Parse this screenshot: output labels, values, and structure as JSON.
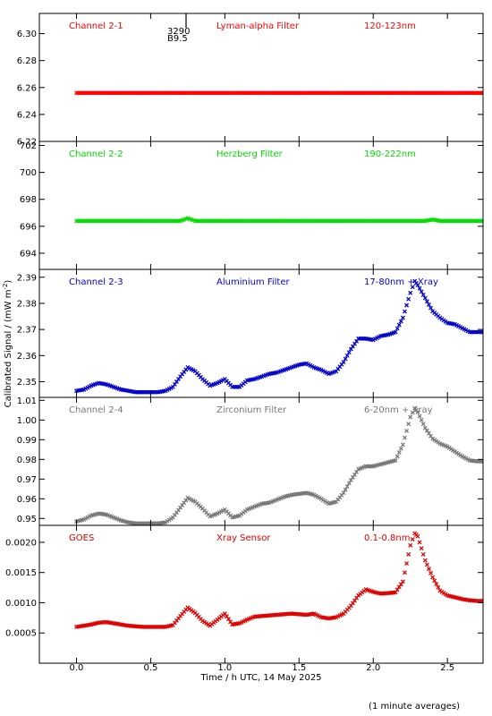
{
  "figure": {
    "ylabel": "Calibrated Signal / (mW m",
    "ylabel_sup": "-2",
    "ylabel_end": ")",
    "xlabel": "Time / h UTC, 14 May 2025",
    "footnote": "(1 minute averages)",
    "marker_top_label": "3290",
    "marker_bottom_label": "B9.5",
    "x_ticks": [
      0.0,
      0.5,
      1.0,
      1.5,
      2.0,
      2.5
    ],
    "x_tick_labels": [
      "0.0",
      "0.5",
      "1.0",
      "1.5",
      "2.0",
      "2.5"
    ],
    "xlim": [
      -0.25,
      2.74
    ]
  },
  "chart_data": [
    {
      "type": "scatter",
      "channel": "Channel 2-1",
      "filter": "Lyman-alpha Filter",
      "band": "120-123nm",
      "color": "#ff0000",
      "ylim": [
        6.22,
        6.315
      ],
      "y_ticks": [
        6.22,
        6.24,
        6.26,
        6.28,
        6.3
      ],
      "y_tick_labels": [
        "6.22",
        "6.24",
        "6.26",
        "6.28",
        "6.30"
      ],
      "points": [
        [
          0.0,
          6.256
        ],
        [
          0.5,
          6.256
        ],
        [
          1.0,
          6.256
        ],
        [
          1.5,
          6.256
        ],
        [
          2.0,
          6.256
        ],
        [
          2.5,
          6.256
        ],
        [
          2.74,
          6.256
        ]
      ]
    },
    {
      "type": "scatter",
      "channel": "Channel 2-2",
      "filter": "Herzberg Filter",
      "band": "190-222nm",
      "color": "#00dd00",
      "ylim": [
        692.8,
        702.3
      ],
      "y_ticks": [
        694,
        696,
        698,
        700,
        702
      ],
      "y_tick_labels": [
        "694",
        "696",
        "698",
        "700",
        "702"
      ],
      "points": [
        [
          0.0,
          696.4
        ],
        [
          0.7,
          696.4
        ],
        [
          0.75,
          696.6
        ],
        [
          0.8,
          696.4
        ],
        [
          1.5,
          696.4
        ],
        [
          2.35,
          696.4
        ],
        [
          2.4,
          696.5
        ],
        [
          2.45,
          696.4
        ],
        [
          2.74,
          696.4
        ]
      ]
    },
    {
      "type": "scatter",
      "channel": "Channel 2-3",
      "filter": "Aluminium Filter",
      "band": "17-80nm + Xray",
      "color": "#0000cc",
      "ylim": [
        2.344,
        2.393
      ],
      "y_ticks": [
        2.35,
        2.36,
        2.37,
        2.38,
        2.39
      ],
      "y_tick_labels": [
        "2.35",
        "2.36",
        "2.37",
        "2.38",
        "2.39"
      ],
      "points": [
        [
          0.0,
          2.3465
        ],
        [
          0.05,
          2.347
        ],
        [
          0.1,
          2.3485
        ],
        [
          0.15,
          2.3495
        ],
        [
          0.2,
          2.349
        ],
        [
          0.25,
          2.348
        ],
        [
          0.3,
          2.347
        ],
        [
          0.35,
          2.3465
        ],
        [
          0.4,
          2.346
        ],
        [
          0.45,
          2.346
        ],
        [
          0.5,
          2.346
        ],
        [
          0.55,
          2.346
        ],
        [
          0.6,
          2.3465
        ],
        [
          0.65,
          2.348
        ],
        [
          0.7,
          2.352
        ],
        [
          0.75,
          2.3555
        ],
        [
          0.8,
          2.354
        ],
        [
          0.85,
          2.351
        ],
        [
          0.9,
          2.3485
        ],
        [
          0.95,
          2.3495
        ],
        [
          1.0,
          2.351
        ],
        [
          1.05,
          2.348
        ],
        [
          1.1,
          2.348
        ],
        [
          1.15,
          2.3505
        ],
        [
          1.2,
          2.351
        ],
        [
          1.25,
          2.352
        ],
        [
          1.3,
          2.353
        ],
        [
          1.35,
          2.3535
        ],
        [
          1.4,
          2.3545
        ],
        [
          1.45,
          2.3555
        ],
        [
          1.5,
          2.3565
        ],
        [
          1.55,
          2.357
        ],
        [
          1.6,
          2.3555
        ],
        [
          1.65,
          2.3545
        ],
        [
          1.7,
          2.353
        ],
        [
          1.75,
          2.354
        ],
        [
          1.8,
          2.3575
        ],
        [
          1.85,
          2.3625
        ],
        [
          1.9,
          2.3665
        ],
        [
          1.95,
          2.3665
        ],
        [
          2.0,
          2.366
        ],
        [
          2.05,
          2.3675
        ],
        [
          2.1,
          2.368
        ],
        [
          2.15,
          2.369
        ],
        [
          2.2,
          2.3745
        ],
        [
          2.25,
          2.384
        ],
        [
          2.28,
          2.3885
        ],
        [
          2.3,
          2.387
        ],
        [
          2.35,
          2.382
        ],
        [
          2.4,
          2.377
        ],
        [
          2.45,
          2.3745
        ],
        [
          2.5,
          2.3725
        ],
        [
          2.55,
          2.372
        ],
        [
          2.6,
          2.3705
        ],
        [
          2.65,
          2.369
        ],
        [
          2.7,
          2.369
        ],
        [
          2.74,
          2.369
        ]
      ]
    },
    {
      "type": "scatter",
      "channel": "Channel 2-4",
      "filter": "Zirconium Filter",
      "band": "6-20nm + Xray",
      "color": "#777777",
      "ylim": [
        0.9465,
        1.0115
      ],
      "y_ticks": [
        0.95,
        0.96,
        0.97,
        0.98,
        0.99,
        1.0,
        1.01
      ],
      "y_tick_labels": [
        "0.95",
        "0.96",
        "0.97",
        "0.98",
        "0.99",
        "1.00",
        "1.01"
      ],
      "points": [
        [
          0.0,
          0.9485
        ],
        [
          0.05,
          0.9495
        ],
        [
          0.1,
          0.9515
        ],
        [
          0.15,
          0.9525
        ],
        [
          0.2,
          0.952
        ],
        [
          0.25,
          0.9505
        ],
        [
          0.3,
          0.949
        ],
        [
          0.35,
          0.948
        ],
        [
          0.4,
          0.9475
        ],
        [
          0.45,
          0.9475
        ],
        [
          0.5,
          0.9475
        ],
        [
          0.55,
          0.9475
        ],
        [
          0.6,
          0.948
        ],
        [
          0.65,
          0.9505
        ],
        [
          0.7,
          0.9555
        ],
        [
          0.75,
          0.9605
        ],
        [
          0.8,
          0.9585
        ],
        [
          0.85,
          0.955
        ],
        [
          0.9,
          0.951
        ],
        [
          0.95,
          0.9525
        ],
        [
          1.0,
          0.9545
        ],
        [
          1.05,
          0.9505
        ],
        [
          1.1,
          0.9515
        ],
        [
          1.15,
          0.9545
        ],
        [
          1.2,
          0.956
        ],
        [
          1.25,
          0.9575
        ],
        [
          1.3,
          0.958
        ],
        [
          1.35,
          0.9595
        ],
        [
          1.4,
          0.961
        ],
        [
          1.45,
          0.962
        ],
        [
          1.5,
          0.9625
        ],
        [
          1.55,
          0.963
        ],
        [
          1.6,
          0.962
        ],
        [
          1.65,
          0.96
        ],
        [
          1.7,
          0.9575
        ],
        [
          1.75,
          0.9585
        ],
        [
          1.8,
          0.963
        ],
        [
          1.85,
          0.9695
        ],
        [
          1.9,
          0.975
        ],
        [
          1.95,
          0.9765
        ],
        [
          2.0,
          0.9765
        ],
        [
          2.05,
          0.9775
        ],
        [
          2.1,
          0.9785
        ],
        [
          2.15,
          0.9795
        ],
        [
          2.2,
          0.9875
        ],
        [
          2.25,
          1.0015
        ],
        [
          2.28,
          1.006
        ],
        [
          2.3,
          1.004
        ],
        [
          2.35,
          0.996
        ],
        [
          2.4,
          0.9905
        ],
        [
          2.45,
          0.988
        ],
        [
          2.5,
          0.9865
        ],
        [
          2.55,
          0.984
        ],
        [
          2.6,
          0.9815
        ],
        [
          2.65,
          0.9795
        ],
        [
          2.7,
          0.979
        ],
        [
          2.74,
          0.979
        ]
      ]
    },
    {
      "type": "scatter",
      "channel": "GOES",
      "filter": "Xray Sensor",
      "band": "0.1-0.8nm",
      "color": "#dd0000",
      "ylim": [
        0.0,
        0.00228
      ],
      "y_ticks": [
        0.0005,
        0.001,
        0.0015,
        0.002
      ],
      "y_tick_labels": [
        "0.0005",
        "0.0010",
        "0.0015",
        "0.0020"
      ],
      "points": [
        [
          0.0,
          0.0006
        ],
        [
          0.05,
          0.00062
        ],
        [
          0.1,
          0.00064
        ],
        [
          0.15,
          0.00067
        ],
        [
          0.2,
          0.00068
        ],
        [
          0.25,
          0.00066
        ],
        [
          0.3,
          0.00064
        ],
        [
          0.35,
          0.00062
        ],
        [
          0.4,
          0.00061
        ],
        [
          0.45,
          0.0006
        ],
        [
          0.5,
          0.0006
        ],
        [
          0.55,
          0.0006
        ],
        [
          0.6,
          0.0006
        ],
        [
          0.65,
          0.00063
        ],
        [
          0.7,
          0.00078
        ],
        [
          0.75,
          0.00092
        ],
        [
          0.8,
          0.00083
        ],
        [
          0.85,
          0.0007
        ],
        [
          0.9,
          0.00062
        ],
        [
          0.95,
          0.00072
        ],
        [
          1.0,
          0.00082
        ],
        [
          1.05,
          0.00064
        ],
        [
          1.1,
          0.00066
        ],
        [
          1.15,
          0.00072
        ],
        [
          1.2,
          0.00077
        ],
        [
          1.25,
          0.00078
        ],
        [
          1.3,
          0.00079
        ],
        [
          1.35,
          0.0008
        ],
        [
          1.4,
          0.00081
        ],
        [
          1.45,
          0.00082
        ],
        [
          1.5,
          0.00081
        ],
        [
          1.55,
          0.0008
        ],
        [
          1.6,
          0.00082
        ],
        [
          1.65,
          0.00076
        ],
        [
          1.7,
          0.00074
        ],
        [
          1.75,
          0.00076
        ],
        [
          1.8,
          0.00082
        ],
        [
          1.85,
          0.00095
        ],
        [
          1.9,
          0.00112
        ],
        [
          1.95,
          0.00122
        ],
        [
          2.0,
          0.00118
        ],
        [
          2.05,
          0.00115
        ],
        [
          2.1,
          0.00116
        ],
        [
          2.15,
          0.00117
        ],
        [
          2.2,
          0.00135
        ],
        [
          2.25,
          0.00195
        ],
        [
          2.28,
          0.00215
        ],
        [
          2.3,
          0.0021
        ],
        [
          2.35,
          0.0017
        ],
        [
          2.4,
          0.00142
        ],
        [
          2.45,
          0.0012
        ],
        [
          2.5,
          0.00112
        ],
        [
          2.55,
          0.00109
        ],
        [
          2.6,
          0.00106
        ],
        [
          2.65,
          0.00104
        ],
        [
          2.7,
          0.00103
        ],
        [
          2.74,
          0.00103
        ]
      ]
    }
  ]
}
